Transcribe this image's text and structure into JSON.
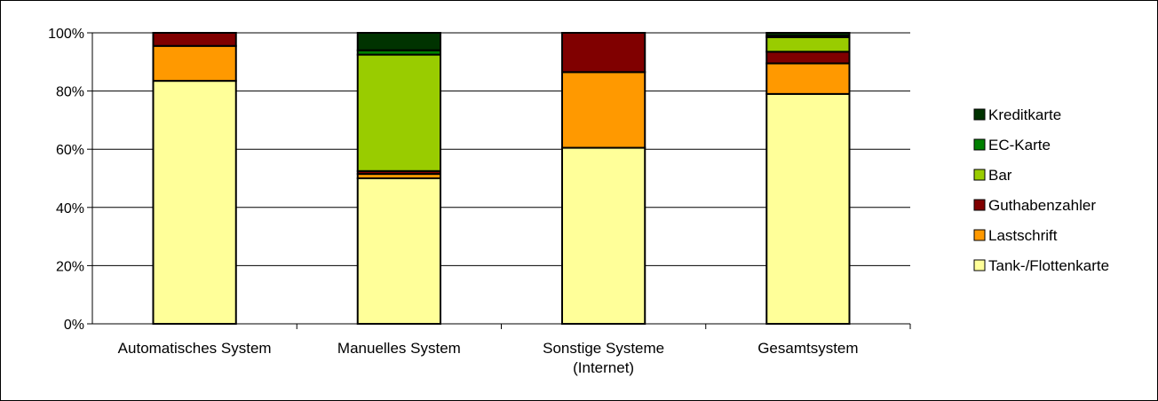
{
  "chart_data": {
    "type": "bar",
    "stacked": true,
    "percent": true,
    "categories": [
      [
        "Automatisches System"
      ],
      [
        "Manuelles System"
      ],
      [
        "Sonstige Systeme",
        "(Internet)"
      ],
      [
        "Gesamtsystem"
      ]
    ],
    "y_ticks": [
      "0%",
      "20%",
      "40%",
      "60%",
      "80%",
      "100%"
    ],
    "ylim": [
      0,
      100
    ],
    "grid": true,
    "legend_position": "right",
    "series": [
      {
        "name": "Tank-/Flottenkarte",
        "color": "#FFFF99",
        "values": [
          83.5,
          50,
          60.5,
          79
        ]
      },
      {
        "name": "Lastschrift",
        "color": "#FF9900",
        "values": [
          12,
          1.5,
          26,
          10.5
        ]
      },
      {
        "name": "Guthabenzahler",
        "color": "#800000",
        "values": [
          4.5,
          1,
          13.5,
          4
        ]
      },
      {
        "name": "Bar",
        "color": "#99CC00",
        "values": [
          0,
          40,
          0,
          5
        ]
      },
      {
        "name": "EC-Karte",
        "color": "#008000",
        "values": [
          0,
          1.5,
          0,
          0.5
        ]
      },
      {
        "name": "Kreditkarte",
        "color": "#003300",
        "values": [
          0,
          6,
          0,
          1
        ]
      }
    ]
  }
}
